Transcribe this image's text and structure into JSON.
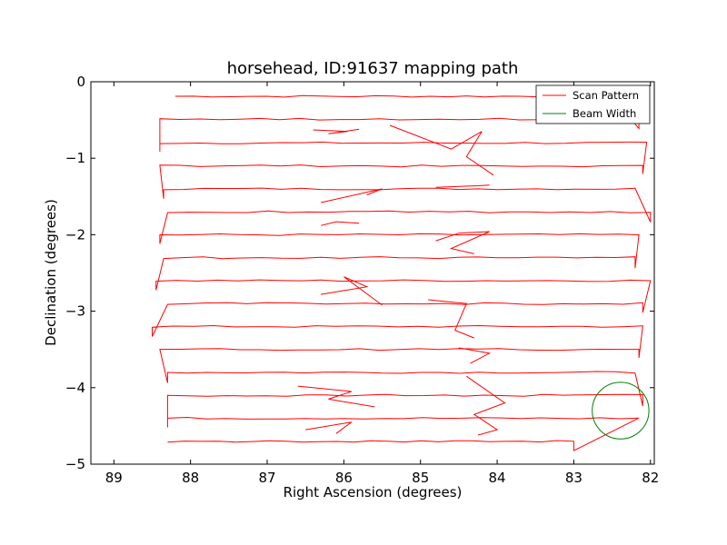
{
  "chart_data": {
    "type": "line",
    "title": "horsehead, ID:91637 mapping path",
    "xlabel": "Right Ascension (degrees)",
    "ylabel": "Declination (degrees)",
    "xlim": [
      89.3,
      81.95
    ],
    "ylim": [
      -5,
      0
    ],
    "x_inverted": true,
    "xticks": [
      89,
      88,
      87,
      86,
      85,
      84,
      83,
      82
    ],
    "yticks": [
      0,
      -1,
      -2,
      -3,
      -4,
      -5
    ],
    "xtick_labels": [
      "89",
      "88",
      "87",
      "86",
      "85",
      "84",
      "83",
      "82"
    ],
    "ytick_labels": [
      "0",
      "−1",
      "−2",
      "−3",
      "−4",
      "−5"
    ],
    "grid": false,
    "legend_position": "top-right",
    "series": [
      {
        "name": "Scan Pattern",
        "color": "#ff0000",
        "style": "zigzag-raster",
        "scan_rows": [
          {
            "y": -0.19,
            "x_start": 88.2,
            "x_end": 82.5
          },
          {
            "y": -0.49,
            "x_start": 88.4,
            "x_end": 82.15
          },
          {
            "y": -0.8,
            "x_start": 88.4,
            "x_end": 82.05
          },
          {
            "y": -1.1,
            "x_start": 88.4,
            "x_end": 82.1
          },
          {
            "y": -1.4,
            "x_start": 88.35,
            "x_end": 82.2
          },
          {
            "y": -1.7,
            "x_start": 88.3,
            "x_end": 82.0
          },
          {
            "y": -2.0,
            "x_start": 88.4,
            "x_end": 82.15
          },
          {
            "y": -2.3,
            "x_start": 88.35,
            "x_end": 82.2
          },
          {
            "y": -2.6,
            "x_start": 88.45,
            "x_end": 82.0
          },
          {
            "y": -2.9,
            "x_start": 88.3,
            "x_end": 82.1
          },
          {
            "y": -3.2,
            "x_start": 88.5,
            "x_end": 82.1
          },
          {
            "y": -3.5,
            "x_start": 88.4,
            "x_end": 82.15
          },
          {
            "y": -3.8,
            "x_start": 88.3,
            "x_end": 82.2
          },
          {
            "y": -4.1,
            "x_start": 88.3,
            "x_end": 82.1
          },
          {
            "y": -4.4,
            "x_start": 88.3,
            "x_end": 82.15
          },
          {
            "y": -4.7,
            "x_start": 88.3,
            "x_end": 83.0
          }
        ],
        "glitches": [
          {
            "x": [
              86.4,
              85.95,
              86.2,
              85.8
            ],
            "y": [
              -0.63,
              -0.65,
              -0.68,
              -0.62
            ]
          },
          {
            "x": [
              85.4,
              84.6,
              84.2,
              84.4,
              84.05
            ],
            "y": [
              -0.57,
              -0.88,
              -0.65,
              -0.98,
              -1.22
            ]
          },
          {
            "x": [
              86.3,
              85.5,
              85.7
            ],
            "y": [
              -1.58,
              -1.4,
              -1.48
            ]
          },
          {
            "x": [
              84.8,
              84.25,
              84.1
            ],
            "y": [
              -1.38,
              -1.36,
              -1.35
            ]
          },
          {
            "x": [
              86.3,
              86.1,
              85.8
            ],
            "y": [
              -1.88,
              -1.83,
              -1.85
            ]
          },
          {
            "x": [
              84.8,
              84.5,
              84.1,
              84.6,
              84.3
            ],
            "y": [
              -2.08,
              -1.98,
              -1.96,
              -2.18,
              -2.25
            ]
          },
          {
            "x": [
              86.3,
              85.7,
              86.0,
              85.5
            ],
            "y": [
              -2.78,
              -2.68,
              -2.55,
              -2.92
            ]
          },
          {
            "x": [
              84.9,
              84.4,
              84.55,
              84.3
            ],
            "y": [
              -2.85,
              -2.9,
              -3.25,
              -3.35
            ]
          },
          {
            "x": [
              84.5,
              84.1,
              84.35
            ],
            "y": [
              -3.48,
              -3.55,
              -3.68
            ]
          },
          {
            "x": [
              86.6,
              85.9,
              86.2,
              85.6
            ],
            "y": [
              -3.98,
              -4.05,
              -4.15,
              -4.25
            ]
          },
          {
            "x": [
              84.4,
              83.9,
              84.3,
              84.0,
              84.25
            ],
            "y": [
              -3.85,
              -4.2,
              -4.35,
              -4.55,
              -4.62
            ]
          },
          {
            "x": [
              86.5,
              85.9,
              86.1
            ],
            "y": [
              -4.55,
              -4.45,
              -4.6
            ]
          }
        ]
      },
      {
        "name": "Beam Width",
        "color": "#008000",
        "shape": "circle",
        "center": [
          82.39,
          -4.3
        ],
        "radius": 0.37
      }
    ]
  }
}
